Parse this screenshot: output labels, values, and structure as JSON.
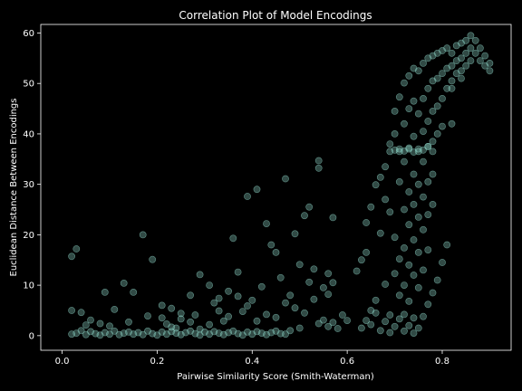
{
  "chart_data": {
    "type": "scatter",
    "title": "Correlation Plot of Model Encodings",
    "xlabel": "Pairwise Similarity Score (Smith-Waterman)",
    "ylabel": "Euclidean Distance Between Encodings",
    "xlim": [
      -0.045,
      0.945
    ],
    "ylim": [
      -2.9,
      61.7
    ],
    "xticks": [
      0.0,
      0.2,
      0.4,
      0.6,
      0.8
    ],
    "xtick_labels": [
      "0.0",
      "0.2",
      "0.4",
      "0.6",
      "0.8"
    ],
    "yticks": [
      0,
      10,
      20,
      30,
      40,
      50,
      60
    ],
    "ytick_labels": [
      "0",
      "10",
      "20",
      "30",
      "40",
      "50",
      "60"
    ],
    "grid": false,
    "point_color": "#8dd3c7",
    "background": "#000000",
    "series": [
      {
        "values": [
          [
            0.02,
            0.3
          ],
          [
            0.03,
            0.5
          ],
          [
            0.04,
            1.0
          ],
          [
            0.05,
            0.2
          ],
          [
            0.06,
            0.8
          ],
          [
            0.07,
            0.4
          ],
          [
            0.08,
            0.1
          ],
          [
            0.09,
            0.6
          ],
          [
            0.1,
            0.3
          ],
          [
            0.11,
            0.9
          ],
          [
            0.12,
            0.2
          ],
          [
            0.13,
            0.5
          ],
          [
            0.14,
            0.7
          ],
          [
            0.15,
            0.3
          ],
          [
            0.16,
            0.6
          ],
          [
            0.17,
            0.2
          ],
          [
            0.18,
            0.9
          ],
          [
            0.19,
            0.4
          ],
          [
            0.2,
            0.1
          ],
          [
            0.21,
            0.7
          ],
          [
            0.22,
            0.3
          ],
          [
            0.23,
            0.8
          ],
          [
            0.24,
            0.5
          ],
          [
            0.25,
            0.2
          ],
          [
            0.26,
            0.6
          ],
          [
            0.27,
            0.9
          ],
          [
            0.28,
            0.4
          ],
          [
            0.29,
            0.1
          ],
          [
            0.3,
            0.7
          ],
          [
            0.31,
            0.3
          ],
          [
            0.32,
            0.8
          ],
          [
            0.33,
            0.5
          ],
          [
            0.34,
            0.2
          ],
          [
            0.35,
            0.6
          ],
          [
            0.36,
            0.9
          ],
          [
            0.37,
            0.4
          ],
          [
            0.38,
            0.1
          ],
          [
            0.39,
            0.7
          ],
          [
            0.4,
            0.3
          ],
          [
            0.41,
            0.8
          ],
          [
            0.42,
            0.5
          ],
          [
            0.43,
            0.2
          ],
          [
            0.44,
            0.6
          ],
          [
            0.45,
            0.9
          ],
          [
            0.46,
            0.4
          ],
          [
            0.47,
            0.3
          ],
          [
            0.48,
            1.0
          ],
          [
            0.5,
            1.5
          ],
          [
            0.02,
            15.7
          ],
          [
            0.03,
            17.2
          ],
          [
            0.02,
            5.0
          ],
          [
            0.04,
            4.6
          ],
          [
            0.06,
            3.1
          ],
          [
            0.09,
            8.6
          ],
          [
            0.11,
            5.2
          ],
          [
            0.13,
            10.4
          ],
          [
            0.15,
            8.6
          ],
          [
            0.17,
            20.0
          ],
          [
            0.19,
            15.1
          ],
          [
            0.21,
            6.0
          ],
          [
            0.23,
            5.4
          ],
          [
            0.25,
            3.3
          ],
          [
            0.27,
            8.0
          ],
          [
            0.29,
            12.1
          ],
          [
            0.31,
            10.0
          ],
          [
            0.33,
            7.4
          ],
          [
            0.35,
            8.8
          ],
          [
            0.37,
            12.6
          ],
          [
            0.39,
            27.6
          ],
          [
            0.41,
            29.0
          ],
          [
            0.43,
            22.2
          ],
          [
            0.44,
            18.0
          ],
          [
            0.45,
            16.5
          ],
          [
            0.47,
            31.1
          ],
          [
            0.49,
            20.2
          ],
          [
            0.51,
            23.8
          ],
          [
            0.52,
            25.5
          ],
          [
            0.54,
            34.7
          ],
          [
            0.54,
            33.2
          ],
          [
            0.56,
            12.3
          ],
          [
            0.57,
            23.4
          ],
          [
            0.36,
            19.3
          ],
          [
            0.32,
            6.5
          ],
          [
            0.28,
            4.1
          ],
          [
            0.22,
            2.3
          ],
          [
            0.18,
            3.9
          ],
          [
            0.14,
            2.7
          ],
          [
            0.1,
            1.9
          ],
          [
            0.08,
            2.4
          ],
          [
            0.05,
            2.1
          ],
          [
            0.24,
            1.5
          ],
          [
            0.34,
            2.9
          ],
          [
            0.38,
            4.8
          ],
          [
            0.4,
            7.0
          ],
          [
            0.42,
            9.7
          ],
          [
            0.46,
            11.5
          ],
          [
            0.48,
            8.0
          ],
          [
            0.5,
            14.1
          ],
          [
            0.52,
            10.6
          ],
          [
            0.53,
            7.2
          ],
          [
            0.54,
            2.4
          ],
          [
            0.55,
            3.1
          ],
          [
            0.56,
            1.8
          ],
          [
            0.57,
            2.6
          ],
          [
            0.58,
            1.4
          ],
          [
            0.59,
            4.1
          ],
          [
            0.6,
            3.0
          ],
          [
            0.55,
            9.5
          ],
          [
            0.56,
            8.2
          ],
          [
            0.57,
            10.5
          ],
          [
            0.53,
            13.2
          ],
          [
            0.51,
            4.5
          ],
          [
            0.49,
            5.5
          ],
          [
            0.47,
            6.5
          ],
          [
            0.45,
            3.6
          ],
          [
            0.43,
            4.2
          ],
          [
            0.41,
            2.9
          ],
          [
            0.39,
            5.9
          ],
          [
            0.37,
            7.8
          ],
          [
            0.35,
            3.8
          ],
          [
            0.33,
            4.9
          ],
          [
            0.31,
            2.2
          ],
          [
            0.29,
            1.3
          ],
          [
            0.27,
            2.7
          ],
          [
            0.25,
            4.4
          ],
          [
            0.23,
            1.7
          ],
          [
            0.21,
            3.5
          ],
          [
            0.62,
            12.8
          ],
          [
            0.63,
            15.0
          ],
          [
            0.64,
            22.4
          ],
          [
            0.64,
            16.5
          ],
          [
            0.65,
            25.5
          ],
          [
            0.65,
            5.0
          ],
          [
            0.66,
            7.0
          ],
          [
            0.66,
            29.9
          ],
          [
            0.67,
            31.4
          ],
          [
            0.67,
            20.3
          ],
          [
            0.68,
            33.5
          ],
          [
            0.68,
            27.0
          ],
          [
            0.68,
            10.2
          ],
          [
            0.69,
            38.0
          ],
          [
            0.69,
            24.5
          ],
          [
            0.69,
            4.1
          ],
          [
            0.7,
            44.5
          ],
          [
            0.7,
            40.0
          ],
          [
            0.7,
            19.5
          ],
          [
            0.7,
            12.3
          ],
          [
            0.71,
            47.3
          ],
          [
            0.71,
            36.5
          ],
          [
            0.71,
            30.5
          ],
          [
            0.71,
            15.2
          ],
          [
            0.71,
            8.0
          ],
          [
            0.72,
            50.1
          ],
          [
            0.72,
            42.0
          ],
          [
            0.72,
            34.5
          ],
          [
            0.72,
            25.0
          ],
          [
            0.72,
            17.4
          ],
          [
            0.72,
            10.0
          ],
          [
            0.72,
            4.2
          ],
          [
            0.73,
            51.5
          ],
          [
            0.73,
            45.0
          ],
          [
            0.73,
            37.0
          ],
          [
            0.73,
            28.5
          ],
          [
            0.73,
            22.0
          ],
          [
            0.73,
            14.0
          ],
          [
            0.73,
            6.8
          ],
          [
            0.74,
            53.0
          ],
          [
            0.74,
            46.5
          ],
          [
            0.74,
            39.5
          ],
          [
            0.74,
            32.0
          ],
          [
            0.74,
            26.0
          ],
          [
            0.74,
            19.0
          ],
          [
            0.74,
            12.0
          ],
          [
            0.74,
            3.5
          ],
          [
            0.75,
            52.5
          ],
          [
            0.75,
            44.0
          ],
          [
            0.75,
            36.5
          ],
          [
            0.75,
            30.0
          ],
          [
            0.75,
            23.5
          ],
          [
            0.75,
            16.5
          ],
          [
            0.75,
            9.5
          ],
          [
            0.76,
            54.0
          ],
          [
            0.76,
            47.0
          ],
          [
            0.76,
            40.5
          ],
          [
            0.76,
            34.5
          ],
          [
            0.76,
            27.5
          ],
          [
            0.76,
            21.0
          ],
          [
            0.76,
            13.0
          ],
          [
            0.77,
            55.0
          ],
          [
            0.77,
            49.0
          ],
          [
            0.77,
            42.5
          ],
          [
            0.77,
            37.5
          ],
          [
            0.77,
            30.5
          ],
          [
            0.77,
            24.0
          ],
          [
            0.77,
            17.0
          ],
          [
            0.78,
            55.5
          ],
          [
            0.78,
            50.5
          ],
          [
            0.78,
            44.5
          ],
          [
            0.78,
            38.5
          ],
          [
            0.78,
            32.0
          ],
          [
            0.78,
            26.0
          ],
          [
            0.79,
            56.0
          ],
          [
            0.79,
            51.0
          ],
          [
            0.79,
            45.5
          ],
          [
            0.79,
            40.0
          ],
          [
            0.8,
            56.5
          ],
          [
            0.8,
            52.0
          ],
          [
            0.8,
            47.0
          ],
          [
            0.8,
            41.5
          ],
          [
            0.81,
            57.0
          ],
          [
            0.81,
            53.0
          ],
          [
            0.81,
            49.0
          ],
          [
            0.82,
            56.0
          ],
          [
            0.82,
            53.5
          ],
          [
            0.82,
            50.5
          ],
          [
            0.83,
            57.5
          ],
          [
            0.83,
            54.5
          ],
          [
            0.83,
            52.0
          ],
          [
            0.84,
            58.0
          ],
          [
            0.84,
            55.0
          ],
          [
            0.84,
            52.5
          ],
          [
            0.85,
            58.5
          ],
          [
            0.85,
            56.0
          ],
          [
            0.85,
            53.5
          ],
          [
            0.86,
            59.5
          ],
          [
            0.86,
            57.0
          ],
          [
            0.86,
            54.5
          ],
          [
            0.87,
            58.5
          ],
          [
            0.87,
            56.0
          ],
          [
            0.88,
            57.0
          ],
          [
            0.88,
            54.5
          ],
          [
            0.89,
            55.5
          ],
          [
            0.89,
            53.5
          ],
          [
            0.9,
            54.0
          ],
          [
            0.9,
            52.5
          ],
          [
            0.84,
            51.0
          ],
          [
            0.82,
            49.0
          ],
          [
            0.69,
            36.5
          ],
          [
            0.7,
            36.8
          ],
          [
            0.71,
            37.0
          ],
          [
            0.72,
            36.6
          ],
          [
            0.73,
            37.2
          ],
          [
            0.74,
            36.4
          ],
          [
            0.75,
            37.0
          ],
          [
            0.76,
            36.8
          ],
          [
            0.77,
            37.5
          ],
          [
            0.78,
            36.5
          ],
          [
            0.63,
            1.5
          ],
          [
            0.64,
            3.0
          ],
          [
            0.65,
            2.2
          ],
          [
            0.66,
            4.5
          ],
          [
            0.67,
            1.0
          ],
          [
            0.68,
            2.8
          ],
          [
            0.69,
            0.6
          ],
          [
            0.7,
            1.8
          ],
          [
            0.71,
            3.3
          ],
          [
            0.72,
            0.9
          ],
          [
            0.73,
            2.0
          ],
          [
            0.74,
            0.5
          ],
          [
            0.75,
            1.5
          ],
          [
            0.76,
            3.8
          ],
          [
            0.77,
            6.2
          ],
          [
            0.78,
            8.5
          ],
          [
            0.79,
            11.0
          ],
          [
            0.8,
            14.5
          ],
          [
            0.81,
            18.0
          ],
          [
            0.82,
            42.0
          ]
        ]
      }
    ]
  }
}
